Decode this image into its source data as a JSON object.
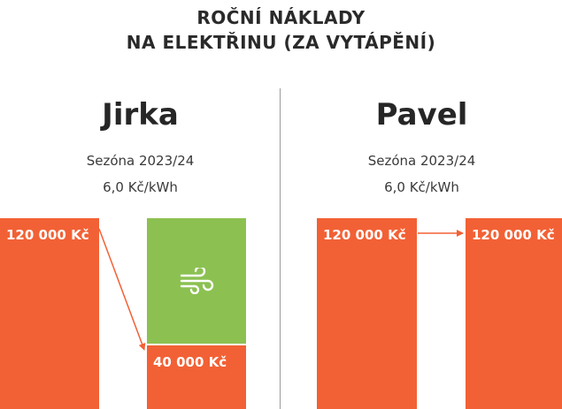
{
  "title": {
    "line1": "ROČNÍ NÁKLADY",
    "line2": "NA ELEKTŘINU (ZA VYTÁPĚNÍ)"
  },
  "colors": {
    "bar": "#f26135",
    "savings": "#8cc152",
    "divider": "#9a9a9a"
  },
  "panels": [
    {
      "name": "Jirka",
      "season": "Sezóna 2023/24",
      "price": "6,0 Kč/kWh",
      "savings_icon": "wind-icon"
    },
    {
      "name": "Pavel",
      "season": "Sezóna 2023/24",
      "price": "6,0 Kč/kWh"
    }
  ],
  "chart_data": {
    "type": "bar",
    "ylim": [
      0,
      120000
    ],
    "panels": [
      {
        "name": "Jirka",
        "bars": [
          {
            "value": 120000,
            "label": "120 000 Kč"
          },
          {
            "value": 40000,
            "label": "40 000 Kč",
            "savings": 80000
          }
        ]
      },
      {
        "name": "Pavel",
        "bars": [
          {
            "value": 120000,
            "label": "120 000 Kč"
          },
          {
            "value": 120000,
            "label": "120 000 Kč"
          }
        ]
      }
    ]
  }
}
